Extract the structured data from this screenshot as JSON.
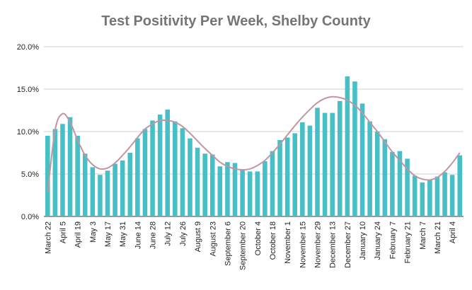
{
  "chart_data": {
    "type": "bar",
    "title": "Test Positivity Per Week, Shelby County",
    "xlabel": "",
    "ylabel": "",
    "ylim": [
      0,
      20
    ],
    "y_ticks": [
      "0.0%",
      "5.0%",
      "10.0%",
      "15.0%",
      "20.0%"
    ],
    "y_tick_values": [
      0,
      5,
      10,
      15,
      20
    ],
    "grid": true,
    "legend": "none",
    "x_tick_labels": [
      "March 22",
      "April 5",
      "April 19",
      "May 3",
      "May 17",
      "May 31",
      "June 14",
      "June 28",
      "July 12",
      "July 26",
      "August 9",
      "August 23",
      "September 6",
      "September 20",
      "October 4",
      "October 18",
      "November 1",
      "November 15",
      "November 29",
      "December 13",
      "December 27",
      "January 10",
      "January 24",
      "February 7",
      "February 21",
      "March 7",
      "March 21",
      "April 4"
    ],
    "series": [
      {
        "type": "bar",
        "color": "#47bfc6",
        "values": [
          9.5,
          10.3,
          10.9,
          11.7,
          9.5,
          7.4,
          5.8,
          4.9,
          5.4,
          6.2,
          6.6,
          7.5,
          9.2,
          10.3,
          11.3,
          12.0,
          12.6,
          11.2,
          10.4,
          9.2,
          8.1,
          7.4,
          7.3,
          5.9,
          6.4,
          6.3,
          5.5,
          5.3,
          5.3,
          6.5,
          7.7,
          9.0,
          9.3,
          9.8,
          11.1,
          10.7,
          12.8,
          12.2,
          12.2,
          13.6,
          16.5,
          15.9,
          13.3,
          11.2,
          10.0,
          9.1,
          7.6,
          7.7,
          6.8,
          4.8,
          4.0,
          4.3,
          4.7,
          5.2,
          4.9,
          7.2
        ]
      },
      {
        "type": "line",
        "color": "#c295a1",
        "smooth": true,
        "values": [
          2.8,
          10.2,
          12.1,
          11.1,
          9.0,
          7.2,
          6.1,
          5.6,
          5.7,
          6.3,
          7.2,
          8.2,
          9.3,
          10.3,
          10.9,
          11.3,
          11.3,
          11.1,
          10.6,
          9.8,
          8.9,
          8.0,
          7.2,
          6.4,
          5.9,
          5.6,
          5.5,
          5.6,
          6.0,
          6.6,
          7.5,
          8.5,
          9.6,
          10.7,
          11.7,
          12.6,
          13.4,
          13.9,
          14.1,
          14.0,
          13.7,
          13.1,
          12.2,
          11.1,
          10.0,
          8.8,
          7.6,
          6.6,
          5.6,
          4.8,
          4.4,
          4.3,
          4.6,
          5.3,
          6.3,
          7.5
        ]
      }
    ]
  }
}
